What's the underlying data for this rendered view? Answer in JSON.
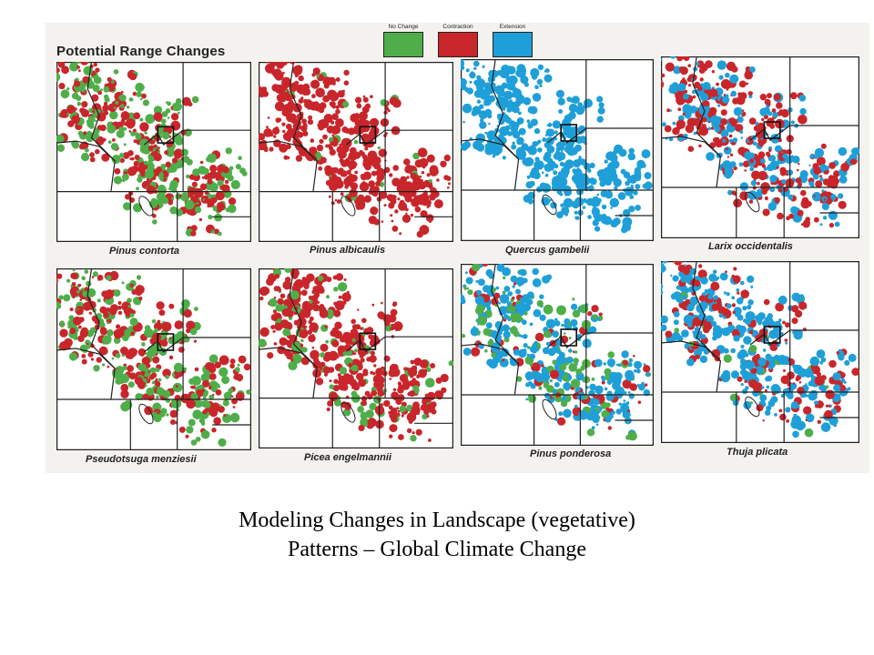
{
  "figure": {
    "title": "Potential Range Changes",
    "legend": [
      {
        "label": "No Change",
        "color": "#4fae4a"
      },
      {
        "label": "Contraction",
        "color": "#c8262b"
      },
      {
        "label": "Extension",
        "color": "#1f9fd8"
      }
    ]
  },
  "maps": [
    {
      "species": "Pinus contorta",
      "mix": {
        "green": 0.55,
        "red": 0.45,
        "blue": 0.0
      }
    },
    {
      "species": "Pinus albicaulis",
      "mix": {
        "green": 0.06,
        "red": 0.94,
        "blue": 0.0
      }
    },
    {
      "species": "Quercus gambelii",
      "mix": {
        "green": 0.0,
        "red": 0.0,
        "blue": 1.0
      }
    },
    {
      "species": "Larix occidentalis",
      "mix": {
        "green": 0.0,
        "red": 0.55,
        "blue": 0.45
      }
    },
    {
      "species": "Pseudotsuga menziesii",
      "mix": {
        "green": 0.45,
        "red": 0.55,
        "blue": 0.0
      }
    },
    {
      "species": "Picea engelmannii",
      "mix": {
        "green": 0.2,
        "red": 0.8,
        "blue": 0.0
      }
    },
    {
      "species": "Pinus ponderosa",
      "mix": {
        "green": 0.25,
        "red": 0.15,
        "blue": 0.6
      }
    },
    {
      "species": "Thuja plicata",
      "mix": {
        "green": 0.05,
        "red": 0.3,
        "blue": 0.65
      }
    }
  ],
  "caption": {
    "line1": "Modeling Changes in Landscape (vegetative)",
    "line2": "Patterns – Global Climate Change"
  }
}
